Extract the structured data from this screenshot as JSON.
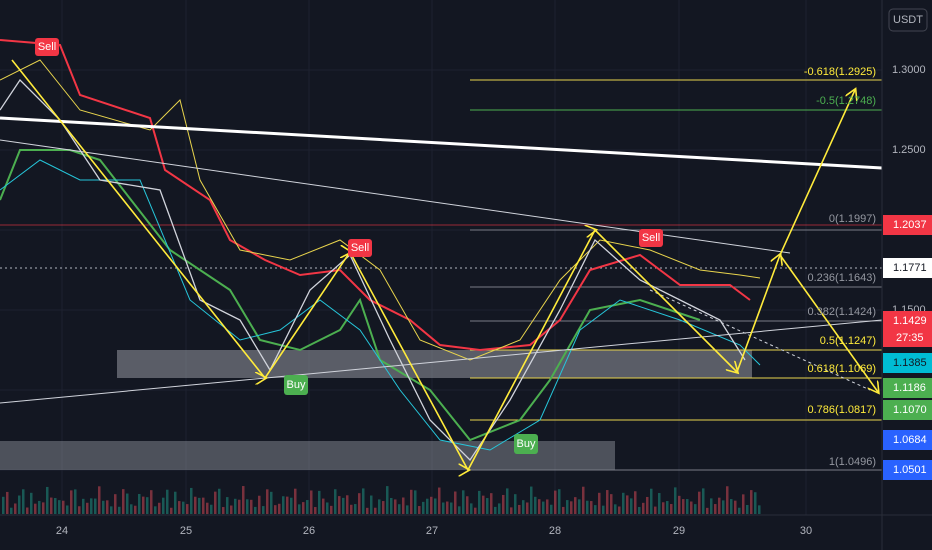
{
  "price_axis": {
    "currency": "USDT",
    "labels": [
      "1.3000",
      "1.2500",
      "1.1500"
    ]
  },
  "price_tags": [
    "1.2037",
    "1.1771",
    "1.1429",
    "1.1385",
    "1.1186",
    "1.1070",
    "1.0684",
    "1.0501"
  ],
  "countdown": "27:35",
  "fib_levels": [
    "-0.618(1.2925)",
    "-0.5(1.2748)",
    "0(1.1997)",
    "0.236(1.1643)",
    "0.382(1.1424)",
    "0.5(1.1247)",
    "0.618(1.1069)",
    "0.786(1.0817)",
    "1(1.0496)"
  ],
  "signals": [
    "Sell",
    "Sell",
    "Sell",
    "Buy",
    "Buy"
  ],
  "dates": [
    "24",
    "25",
    "26",
    "27",
    "28",
    "29",
    "30"
  ]
}
